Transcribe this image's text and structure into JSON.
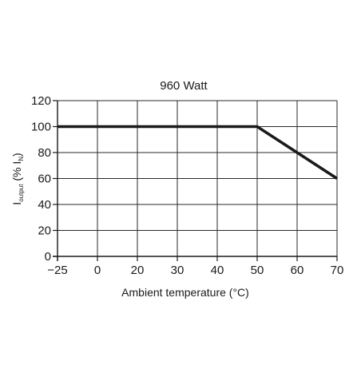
{
  "chart_data": {
    "type": "line",
    "title": "960 Watt",
    "xlabel": "Ambient temperature (°C)",
    "ylabel": {
      "main": "I",
      "sub": "output",
      "paren_open": " (% I",
      "paren_sub": "N",
      "paren_close": ")"
    },
    "x_categories": [
      "−25",
      "0",
      "20",
      "30",
      "40",
      "50",
      "60",
      "70"
    ],
    "y_ticks": [
      0,
      20,
      40,
      60,
      80,
      100,
      120
    ],
    "ylim": [
      0,
      120
    ],
    "grid": true,
    "legend": "none",
    "series": [
      {
        "x": [
          "−25",
          "50",
          "70"
        ],
        "y": [
          100,
          100,
          60
        ],
        "color": "#1a1a1a"
      }
    ]
  }
}
